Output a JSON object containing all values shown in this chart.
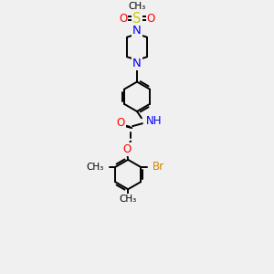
{
  "bg_color": "#f0f0f0",
  "atom_colors": {
    "N": "#0000ff",
    "O": "#ff0000",
    "S": "#cccc00",
    "Br": "#cc8800",
    "C": "#000000",
    "H": "#000000"
  },
  "bond_color": "#000000",
  "bond_lw": 1.4,
  "font_size": 8.5,
  "xlim": [
    0,
    10
  ],
  "ylim": [
    0,
    15
  ]
}
